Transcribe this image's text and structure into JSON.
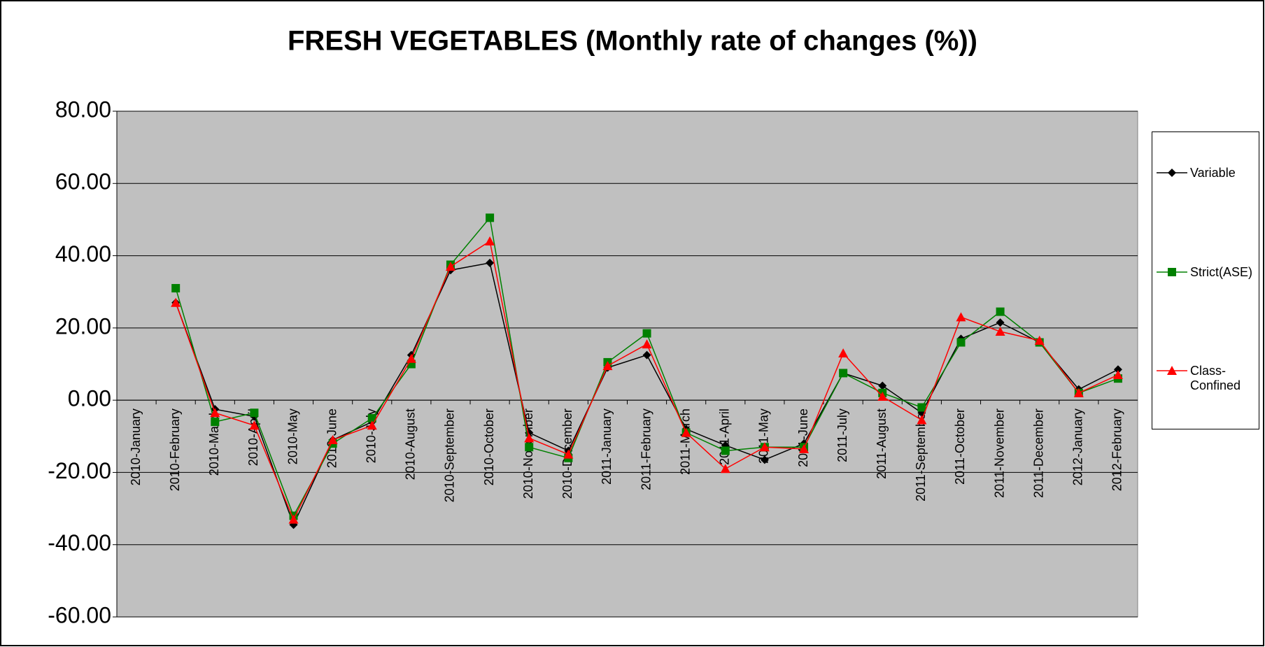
{
  "chart_data": {
    "type": "line",
    "title": "FRESH VEGETABLES (Monthly rate of changes (%))",
    "categories": [
      "2010-January",
      "2010-February",
      "2010-March",
      "2010-April",
      "2010-May",
      "2010-June",
      "2010-July",
      "2010-August",
      "2010-September",
      "2010-October",
      "2010-November",
      "2010-December",
      "2011-January",
      "2011-February",
      "2011-March",
      "2011-April",
      "2011-May",
      "2011-June",
      "2011-July",
      "2011-August",
      "2011-September",
      "2011-October",
      "2011-November",
      "2011-December",
      "2012-January",
      "2012-February"
    ],
    "series": [
      {
        "name": "Variable",
        "color": "#000000",
        "marker": "diamond",
        "values": [
          null,
          27,
          -2.5,
          -4.5,
          -34.5,
          -11,
          -6,
          12.5,
          36,
          38,
          -9,
          -14,
          9,
          12.5,
          -8,
          -12.5,
          -16.5,
          -12,
          7.5,
          4,
          -3.5,
          17,
          21.5,
          16,
          3,
          8.5
        ]
      },
      {
        "name": "Strict(ASE)",
        "color": "#008000",
        "marker": "square",
        "values": [
          null,
          31,
          -6,
          -3.5,
          -32,
          -12,
          -5,
          10,
          37.5,
          50.5,
          -13,
          -16,
          10.5,
          18.5,
          -9,
          -14,
          -13,
          -13,
          7.5,
          2,
          -2,
          16,
          24.5,
          16,
          2,
          6
        ]
      },
      {
        "name": "Class-Confined",
        "color": "#ff0000",
        "marker": "triangle",
        "values": [
          null,
          27,
          -3.5,
          -7,
          -33,
          -11,
          -7,
          11.5,
          37,
          44,
          -10.5,
          -15,
          9.5,
          15.5,
          -9,
          -19,
          -13,
          -13.5,
          13,
          1,
          -5.5,
          23,
          19,
          16.5,
          2,
          7
        ]
      }
    ],
    "ylim": [
      -60,
      80
    ],
    "yticks": [
      {
        "value": -60,
        "label": "-60.00"
      },
      {
        "value": -40,
        "label": "-40.00"
      },
      {
        "value": -20,
        "label": "-20.00"
      },
      {
        "value": 0,
        "label": "0.00"
      },
      {
        "value": 20,
        "label": "20.00"
      },
      {
        "value": 40,
        "label": "40.00"
      },
      {
        "value": 60,
        "label": "60.00"
      },
      {
        "value": 80,
        "label": "80.00"
      }
    ],
    "grid": true,
    "plot_background": "#c0c0c0",
    "legend": "right"
  }
}
